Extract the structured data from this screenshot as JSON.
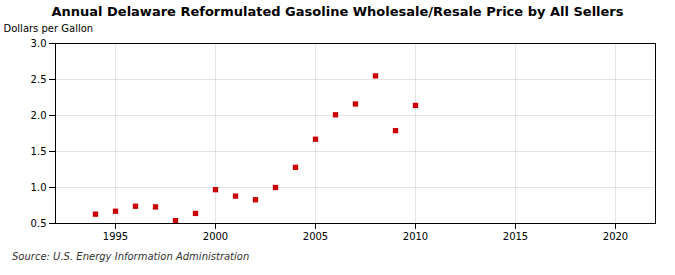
{
  "chart_data": {
    "type": "scatter",
    "title": "Annual Delaware Reformulated Gasoline Wholesale/Resale Price by All Sellers",
    "ylabel": "Dollars per Gallon",
    "annotations": [
      "Source: U.S. Energy Information Administration"
    ],
    "x": [
      1994,
      1995,
      1996,
      1997,
      1998,
      1999,
      2000,
      2001,
      2002,
      2003,
      2004,
      2005,
      2006,
      2007,
      2008,
      2009,
      2010
    ],
    "values": [
      0.63,
      0.67,
      0.74,
      0.73,
      0.54,
      0.64,
      0.97,
      0.88,
      0.83,
      1.0,
      1.28,
      1.67,
      2.01,
      2.16,
      2.55,
      1.79,
      2.14
    ],
    "color": "#cc0000",
    "marker": "square",
    "xlim": [
      1992,
      2022
    ],
    "xticks": [
      1995,
      2000,
      2005,
      2010,
      2015,
      2020
    ],
    "ylim": [
      0.5,
      3.0
    ],
    "yticks": [
      0.5,
      {
        "value": 1.0,
        "label": "1.0"
      },
      1.5,
      {
        "value": 2.0,
        "label": "2.0"
      },
      2.5,
      {
        "value": 3.0,
        "label": "3.0"
      }
    ],
    "grid": true
  }
}
